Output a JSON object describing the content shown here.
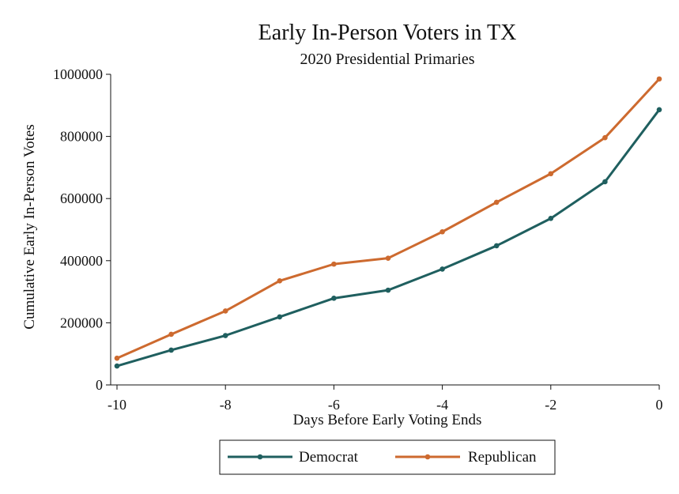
{
  "chart_data": {
    "type": "line",
    "title": "Early In-Person Voters in TX",
    "subtitle": "2020 Presidential Primaries",
    "xlabel": "Days Before Early Voting Ends",
    "ylabel": "Cumulative Early In-Person Votes",
    "x": [
      -10,
      -9,
      -8,
      -7,
      -6,
      -5,
      -4,
      -3,
      -2,
      -1,
      0
    ],
    "series": [
      {
        "name": "Democrat",
        "color": "#1f5f5f",
        "values": [
          61000,
          112000,
          159000,
          219000,
          279000,
          305000,
          373000,
          448000,
          536000,
          654000,
          886000
        ]
      },
      {
        "name": "Republican",
        "color": "#cd6a2f",
        "values": [
          86000,
          163000,
          238000,
          335000,
          389000,
          408000,
          493000,
          588000,
          680000,
          796000,
          985000
        ]
      }
    ],
    "xlim": [
      -10,
      0
    ],
    "ylim": [
      0,
      1000000
    ],
    "xticks": [
      "-10",
      "-8",
      "-6",
      "-4",
      "-2",
      "0"
    ],
    "xtick_values": [
      -10,
      -8,
      -6,
      -4,
      -2,
      0
    ],
    "yticks": [
      "0",
      "200000",
      "400000",
      "600000",
      "800000",
      "1000000"
    ],
    "ytick_values": [
      0,
      200000,
      400000,
      600000,
      800000,
      1000000
    ],
    "grid": false,
    "legend_position": "bottom-center",
    "legend_entries": [
      "Democrat",
      "Republican"
    ]
  }
}
